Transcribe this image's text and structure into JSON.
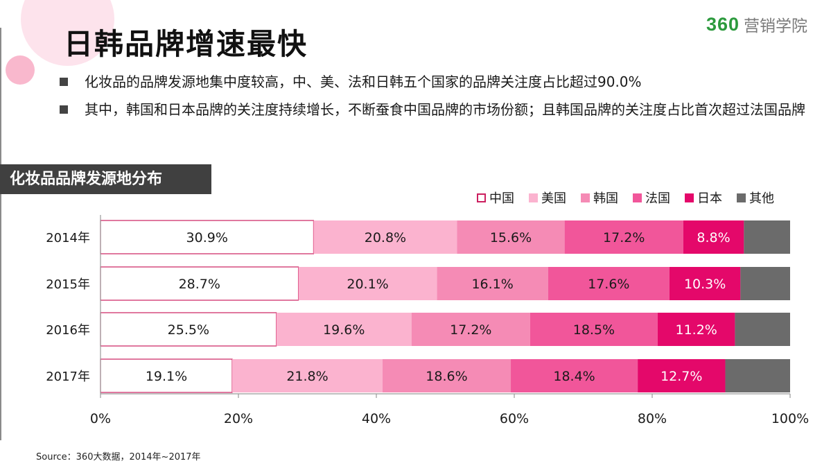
{
  "header": {
    "title": "日韩品牌增速最快",
    "logo_number": "360",
    "logo_text": "营销学院"
  },
  "bullets": [
    "化妆品的品牌发源地集中度较高，中、美、法和日韩五个国家的品牌关注度占比超过90.0%",
    "其中，韩国和日本品牌的关注度持续增长，不断蚕食中国品牌的市场份额；且韩国品牌的关注度占比首次超过法国品牌"
  ],
  "section_title": "化妆品品牌发源地分布",
  "source": "Source：360大数据，2014年~2017年",
  "chart_data": {
    "type": "bar",
    "orientation": "horizontal",
    "stacked": true,
    "categories": [
      "2014年",
      "2015年",
      "2016年",
      "2017年"
    ],
    "series": [
      {
        "name": "中国",
        "color": "#ffffff",
        "border": "#cc1f5f",
        "values": [
          30.9,
          28.7,
          25.5,
          19.1
        ],
        "labels": [
          "30.9%",
          "28.7%",
          "25.5%",
          "19.1%"
        ]
      },
      {
        "name": "美国",
        "color": "#fbb3cf",
        "values": [
          20.8,
          20.1,
          19.6,
          21.8
        ],
        "labels": [
          "20.8%",
          "20.1%",
          "19.6%",
          "21.8%"
        ]
      },
      {
        "name": "韩国",
        "color": "#f58bb5",
        "values": [
          15.6,
          16.1,
          17.2,
          18.6
        ],
        "labels": [
          "15.6%",
          "16.1%",
          "17.2%",
          "18.6%"
        ]
      },
      {
        "name": "法国",
        "color": "#f1569a",
        "values": [
          17.2,
          17.6,
          18.5,
          18.4
        ],
        "labels": [
          "17.2%",
          "17.6%",
          "18.5%",
          "18.4%"
        ]
      },
      {
        "name": "日本",
        "color": "#e4086a",
        "values": [
          8.8,
          10.3,
          11.2,
          12.7
        ],
        "labels": [
          "8.8%",
          "10.3%",
          "11.2%",
          "12.7%"
        ]
      },
      {
        "name": "其他",
        "color": "#6b6b6b",
        "values": [
          6.7,
          7.2,
          8.0,
          9.4
        ],
        "labels": [
          "",
          "",
          "",
          ""
        ]
      }
    ],
    "xlim": [
      0,
      100
    ],
    "xticks": [
      0,
      20,
      40,
      60,
      80,
      100
    ],
    "xtick_labels": [
      "0%",
      "20%",
      "40%",
      "60%",
      "80%",
      "100%"
    ],
    "legend_position": "top-right",
    "grid": false
  }
}
